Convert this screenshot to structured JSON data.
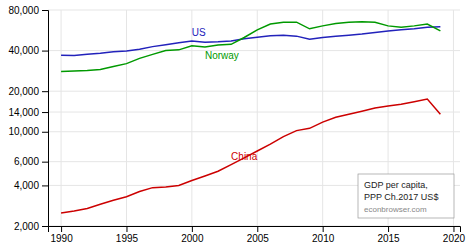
{
  "chart_data": {
    "type": "line",
    "log": "y",
    "grid": true,
    "x": [
      1990,
      1991,
      1992,
      1993,
      1994,
      1995,
      1996,
      1997,
      1998,
      1999,
      2000,
      2001,
      2002,
      2003,
      2004,
      2005,
      2006,
      2007,
      2008,
      2009,
      2010,
      2011,
      2012,
      2013,
      2014,
      2015,
      2016,
      2017,
      2018,
      2019
    ],
    "series": [
      {
        "name": "US",
        "color": "#2222bb",
        "values": [
          37000,
          36800,
          37500,
          38200,
          39200,
          39800,
          41000,
          42800,
          44200,
          45800,
          47200,
          46200,
          46500,
          47200,
          49000,
          50200,
          51500,
          52000,
          51200,
          48500,
          50000,
          51000,
          52000,
          53000,
          54500,
          56000,
          57000,
          58000,
          59500,
          60000
        ]
      },
      {
        "name": "Norway",
        "color": "#009900",
        "values": [
          28000,
          28200,
          28500,
          29000,
          30500,
          32000,
          35000,
          37500,
          40000,
          40500,
          43500,
          42500,
          44000,
          44500,
          50000,
          57000,
          63000,
          65000,
          65000,
          58000,
          61000,
          63500,
          65000,
          65500,
          65000,
          61000,
          59500,
          61000,
          63000,
          56000
        ]
      },
      {
        "name": "China",
        "color": "#cc0000",
        "values": [
          2500,
          2580,
          2700,
          2900,
          3100,
          3300,
          3600,
          3850,
          3900,
          4000,
          4350,
          4700,
          5100,
          5700,
          6400,
          7200,
          8100,
          9200,
          10200,
          10600,
          11800,
          12800,
          13500,
          14200,
          15000,
          15500,
          16000,
          16700,
          17500,
          13500
        ]
      }
    ],
    "xlim": [
      1989.0,
      2020.5
    ],
    "xticks": [
      1990,
      1995,
      2000,
      2005,
      2010,
      2015,
      2020
    ],
    "ylim": [
      2000,
      80000
    ],
    "yticks": [
      {
        "value": 2000,
        "label": "2,000"
      },
      {
        "value": 4000,
        "label": "4,000"
      },
      {
        "value": 6000,
        "label": "6,000"
      },
      {
        "value": 10000,
        "label": "10,000"
      },
      {
        "value": 14000,
        "label": "14,000"
      },
      {
        "value": 20000,
        "label": "20,000"
      },
      {
        "value": 40000,
        "label": "40,000"
      },
      {
        "value": 80000,
        "label": "80,000"
      }
    ],
    "annotations": [
      "GDP per capita,",
      "PPP Ch.2017 US$",
      "econbrowser.com"
    ]
  }
}
